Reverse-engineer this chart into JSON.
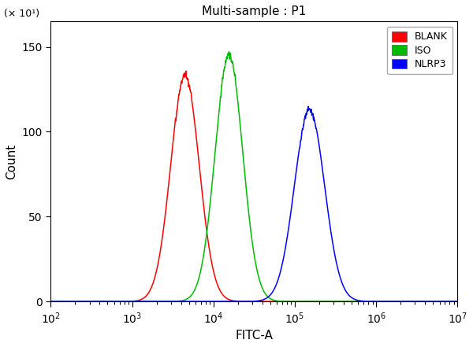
{
  "title": "Multi-sample : P1",
  "xlabel": "FITC-A",
  "ylabel": "Count",
  "y_multiplier_label": "(× 10¹)",
  "xlim_log": [
    2,
    7
  ],
  "ylim": [
    0,
    165
  ],
  "yticks": [
    0,
    50,
    100,
    150
  ],
  "background_color": "#ffffff",
  "plot_bg_color": "#ffffff",
  "curves": [
    {
      "label": "BLANK",
      "color": "#ff0000",
      "mu_log10": 3.65,
      "sigma_log10": 0.175,
      "peak": 133,
      "seed": 42
    },
    {
      "label": "ISO",
      "color": "#00bb00",
      "mu_log10": 4.19,
      "sigma_log10": 0.17,
      "peak": 145,
      "seed": 1
    },
    {
      "label": "NLRP3",
      "color": "#0000ff",
      "mu_log10": 5.18,
      "sigma_log10": 0.185,
      "peak": 113,
      "seed": 2
    }
  ],
  "legend_labels": [
    "BLANK",
    "ISO",
    "NLRP3"
  ],
  "legend_colors": [
    "#ff0000",
    "#00bb00",
    "#0000ff"
  ]
}
